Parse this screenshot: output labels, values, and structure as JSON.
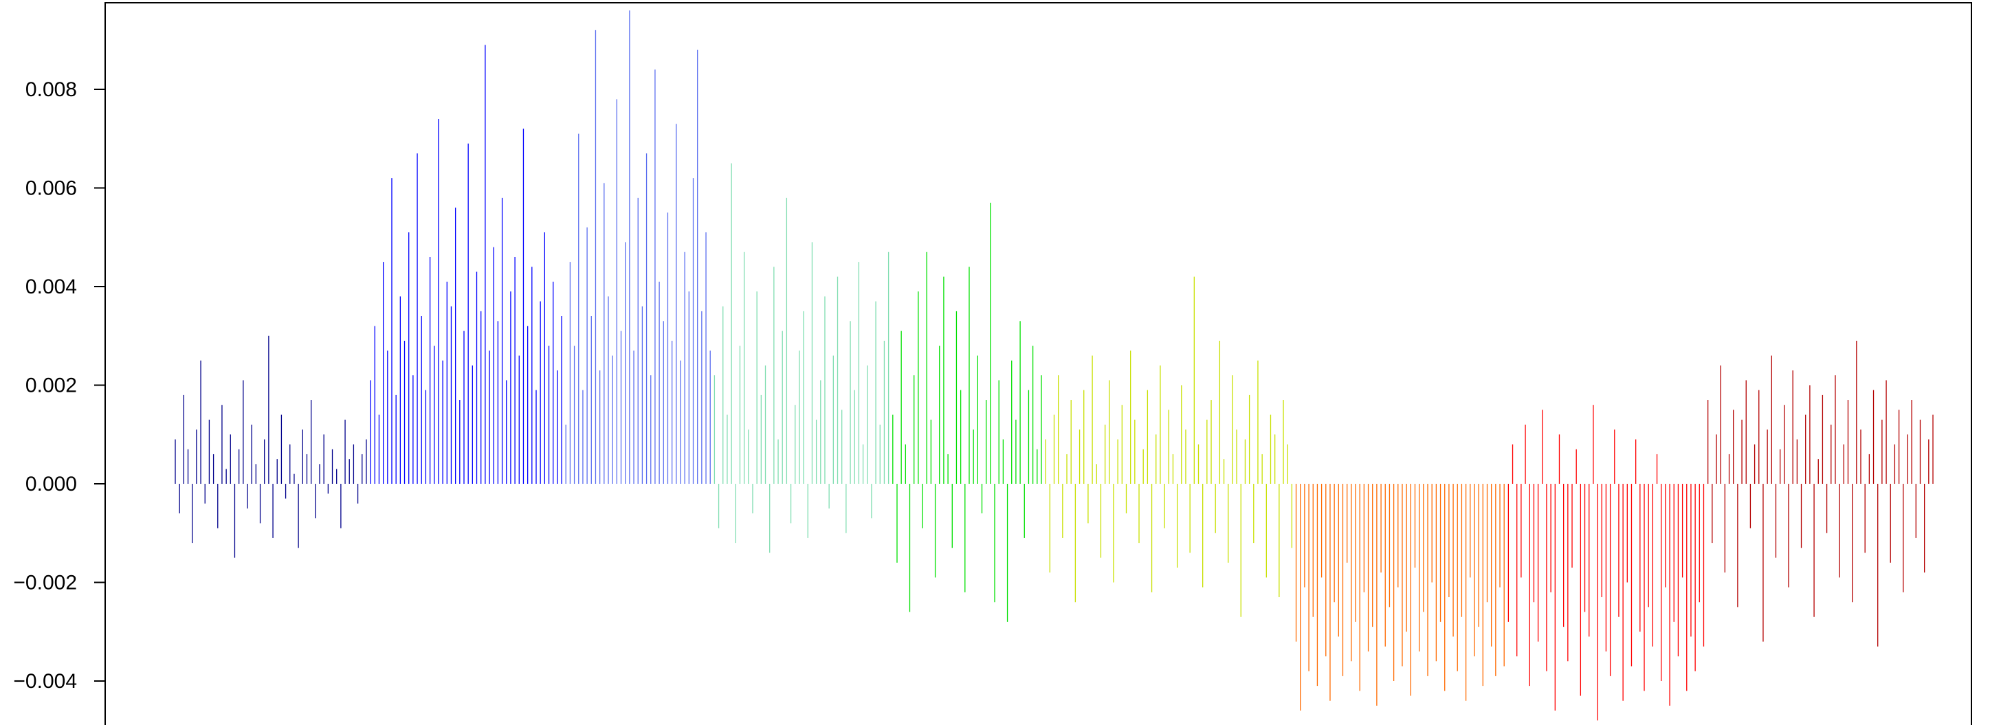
{
  "chart_data": {
    "type": "bar",
    "title": "",
    "xlabel": "",
    "ylabel": "",
    "ylim": [
      -0.0048,
      0.0098
    ],
    "yticks": [
      {
        "value": -0.004,
        "label": "−0.004"
      },
      {
        "value": -0.002,
        "label": "−0.002"
      },
      {
        "value": 0.0,
        "label": "0.000"
      },
      {
        "value": 0.002,
        "label": "0.002"
      },
      {
        "value": 0.004,
        "label": "0.004"
      },
      {
        "value": 0.006,
        "label": "0.006"
      },
      {
        "value": 0.008,
        "label": "0.008"
      }
    ],
    "grid": false,
    "legend": "none",
    "colors": [
      "#00008B",
      "#0000FF",
      "#5A6EF0",
      "#7FDDB0",
      "#00E000",
      "#C8E000",
      "#FF6A00",
      "#FF0000",
      "#B40000"
    ],
    "series": [
      {
        "color": "#00008B",
        "values": [
          0.0009,
          -0.0006,
          0.0018,
          0.0007,
          -0.0012,
          0.0011,
          0.0025,
          -0.0004,
          0.0013,
          0.0006,
          -0.0009,
          0.0016,
          0.0003,
          0.001,
          -0.0015,
          0.0007,
          0.0021,
          -0.0005,
          0.0012,
          0.0004,
          -0.0008,
          0.0009,
          0.003,
          -0.0011,
          0.0005,
          0.0014,
          -0.0003,
          0.0008,
          0.0002,
          -0.0013,
          0.0011,
          0.0006,
          0.0017,
          -0.0007,
          0.0004,
          0.001,
          -0.0002,
          0.0007,
          0.0003,
          -0.0009,
          0.0013,
          0.0005,
          0.0008,
          -0.0004,
          0.0006,
          0.0009
        ]
      },
      {
        "color": "#0000FF",
        "values": [
          0.0021,
          0.0032,
          0.0014,
          0.0045,
          0.0027,
          0.0062,
          0.0018,
          0.0038,
          0.0029,
          0.0051,
          0.0022,
          0.0067,
          0.0034,
          0.0019,
          0.0046,
          0.0028,
          0.0074,
          0.0025,
          0.0041,
          0.0036,
          0.0056,
          0.0017,
          0.0031,
          0.0069,
          0.0024,
          0.0043,
          0.0035,
          0.0089,
          0.0027,
          0.0048,
          0.0033,
          0.0058,
          0.0021,
          0.0039,
          0.0046,
          0.0026,
          0.0072,
          0.0032,
          0.0044,
          0.0019,
          0.0037,
          0.0051,
          0.0028,
          0.0041,
          0.0023,
          0.0034
        ]
      },
      {
        "color": "#5A6EF0",
        "values": [
          0.0012,
          0.0045,
          0.0028,
          0.0071,
          0.0019,
          0.0052,
          0.0034,
          0.0092,
          0.0023,
          0.0061,
          0.0038,
          0.0026,
          0.0078,
          0.0031,
          0.0049,
          0.0096,
          0.0027,
          0.0058,
          0.0036,
          0.0067,
          0.0022,
          0.0084,
          0.0041,
          0.0033,
          0.0055,
          0.0029,
          0.0073,
          0.0025,
          0.0047,
          0.0039,
          0.0062,
          0.0088,
          0.0035,
          0.0051,
          0.0027
        ]
      },
      {
        "color": "#7FDDB0",
        "values": [
          0.0022,
          -0.0009,
          0.0036,
          0.0014,
          0.0065,
          -0.0012,
          0.0028,
          0.0047,
          0.0011,
          -0.0006,
          0.0039,
          0.0018,
          0.0024,
          -0.0014,
          0.0044,
          0.0009,
          0.0031,
          0.0058,
          -0.0008,
          0.0016,
          0.0027,
          0.0035,
          -0.0011,
          0.0049,
          0.0013,
          0.0021,
          0.0038,
          -0.0005,
          0.0026,
          0.0042,
          0.0015,
          -0.001,
          0.0033,
          0.0019,
          0.0045,
          0.0008,
          0.0024,
          -0.0007,
          0.0037,
          0.0012,
          0.0029,
          0.0047
        ]
      },
      {
        "color": "#00E000",
        "values": [
          0.0014,
          -0.0016,
          0.0031,
          0.0008,
          -0.0026,
          0.0022,
          0.0039,
          -0.0009,
          0.0047,
          0.0013,
          -0.0019,
          0.0028,
          0.0042,
          0.0006,
          -0.0013,
          0.0035,
          0.0019,
          -0.0022,
          0.0044,
          0.0011,
          0.0026,
          -0.0006,
          0.0017,
          0.0057,
          -0.0024,
          0.0021,
          0.0009,
          -0.0028,
          0.0025,
          0.0013,
          0.0033,
          -0.0011,
          0.0019,
          0.0028,
          0.0007,
          0.0022
        ]
      },
      {
        "color": "#C8E000",
        "values": [
          0.0009,
          -0.0018,
          0.0014,
          0.0022,
          -0.0011,
          0.0006,
          0.0017,
          -0.0024,
          0.0011,
          0.0019,
          -0.0008,
          0.0026,
          0.0004,
          -0.0015,
          0.0012,
          0.0021,
          -0.002,
          0.0009,
          0.0016,
          -0.0006,
          0.0027,
          0.0013,
          -0.0012,
          0.0007,
          0.0019,
          -0.0022,
          0.001,
          0.0024,
          -0.0009,
          0.0015,
          0.0006,
          -0.0017,
          0.002,
          0.0011,
          -0.0014,
          0.0042,
          0.0008,
          -0.0021,
          0.0013,
          0.0017,
          -0.001,
          0.0029,
          0.0005,
          -0.0016,
          0.0022,
          0.0011,
          -0.0027,
          0.0009,
          0.0018,
          -0.0012,
          0.0025,
          0.0006,
          -0.0019,
          0.0014,
          0.001,
          -0.0023,
          0.0017,
          0.0008,
          -0.0013
        ]
      },
      {
        "color": "#FF6A00",
        "values": [
          -0.0032,
          -0.0046,
          -0.0021,
          -0.0038,
          -0.0027,
          -0.0041,
          -0.0019,
          -0.0035,
          -0.0044,
          -0.0024,
          -0.0031,
          -0.0039,
          -0.0016,
          -0.0036,
          -0.0028,
          -0.0042,
          -0.0022,
          -0.0034,
          -0.0029,
          -0.0045,
          -0.0018,
          -0.0033,
          -0.0025,
          -0.004,
          -0.0021,
          -0.0037,
          -0.003,
          -0.0043,
          -0.0017,
          -0.0034,
          -0.0026,
          -0.0039,
          -0.002,
          -0.0036,
          -0.0028,
          -0.0042,
          -0.0023,
          -0.0031,
          -0.0038,
          -0.0027,
          -0.0044,
          -0.0019,
          -0.0035,
          -0.0029,
          -0.0041,
          -0.0024,
          -0.0033,
          -0.0039,
          -0.0021,
          -0.0037
        ]
      },
      {
        "color": "#FF0000",
        "values": [
          -0.0028,
          0.0008,
          -0.0035,
          -0.0019,
          0.0012,
          -0.0041,
          -0.0024,
          -0.0032,
          0.0015,
          -0.0038,
          -0.0022,
          -0.0046,
          0.001,
          -0.0029,
          -0.0036,
          -0.0017,
          0.0007,
          -0.0043,
          -0.0026,
          -0.0031,
          0.0016,
          -0.0048,
          -0.0023,
          -0.0034,
          -0.0039,
          0.0011,
          -0.0027,
          -0.0044,
          -0.002,
          -0.0037,
          0.0009,
          -0.003,
          -0.0042,
          -0.0025,
          -0.0033,
          0.0006,
          -0.004,
          -0.0021,
          -0.0045,
          -0.0028,
          -0.0035,
          -0.0019,
          -0.0042,
          -0.0031,
          -0.0038,
          -0.0024,
          -0.0033
        ]
      },
      {
        "color": "#B40000",
        "values": [
          0.0017,
          -0.0012,
          0.001,
          0.0024,
          -0.0018,
          0.0006,
          0.0015,
          -0.0025,
          0.0013,
          0.0021,
          -0.0009,
          0.0008,
          0.0019,
          -0.0032,
          0.0011,
          0.0026,
          -0.0015,
          0.0007,
          0.0016,
          -0.0021,
          0.0023,
          0.0009,
          -0.0013,
          0.0014,
          0.002,
          -0.0027,
          0.0005,
          0.0018,
          -0.001,
          0.0012,
          0.0022,
          -0.0019,
          0.0008,
          0.0017,
          -0.0024,
          0.0029,
          0.0011,
          -0.0014,
          0.0006,
          0.0019,
          -0.0033,
          0.0013,
          0.0021,
          -0.0016,
          0.0008,
          0.0015,
          -0.0022,
          0.001,
          0.0017,
          -0.0011,
          0.0013,
          -0.0018,
          0.0009,
          0.0014
        ]
      }
    ]
  }
}
